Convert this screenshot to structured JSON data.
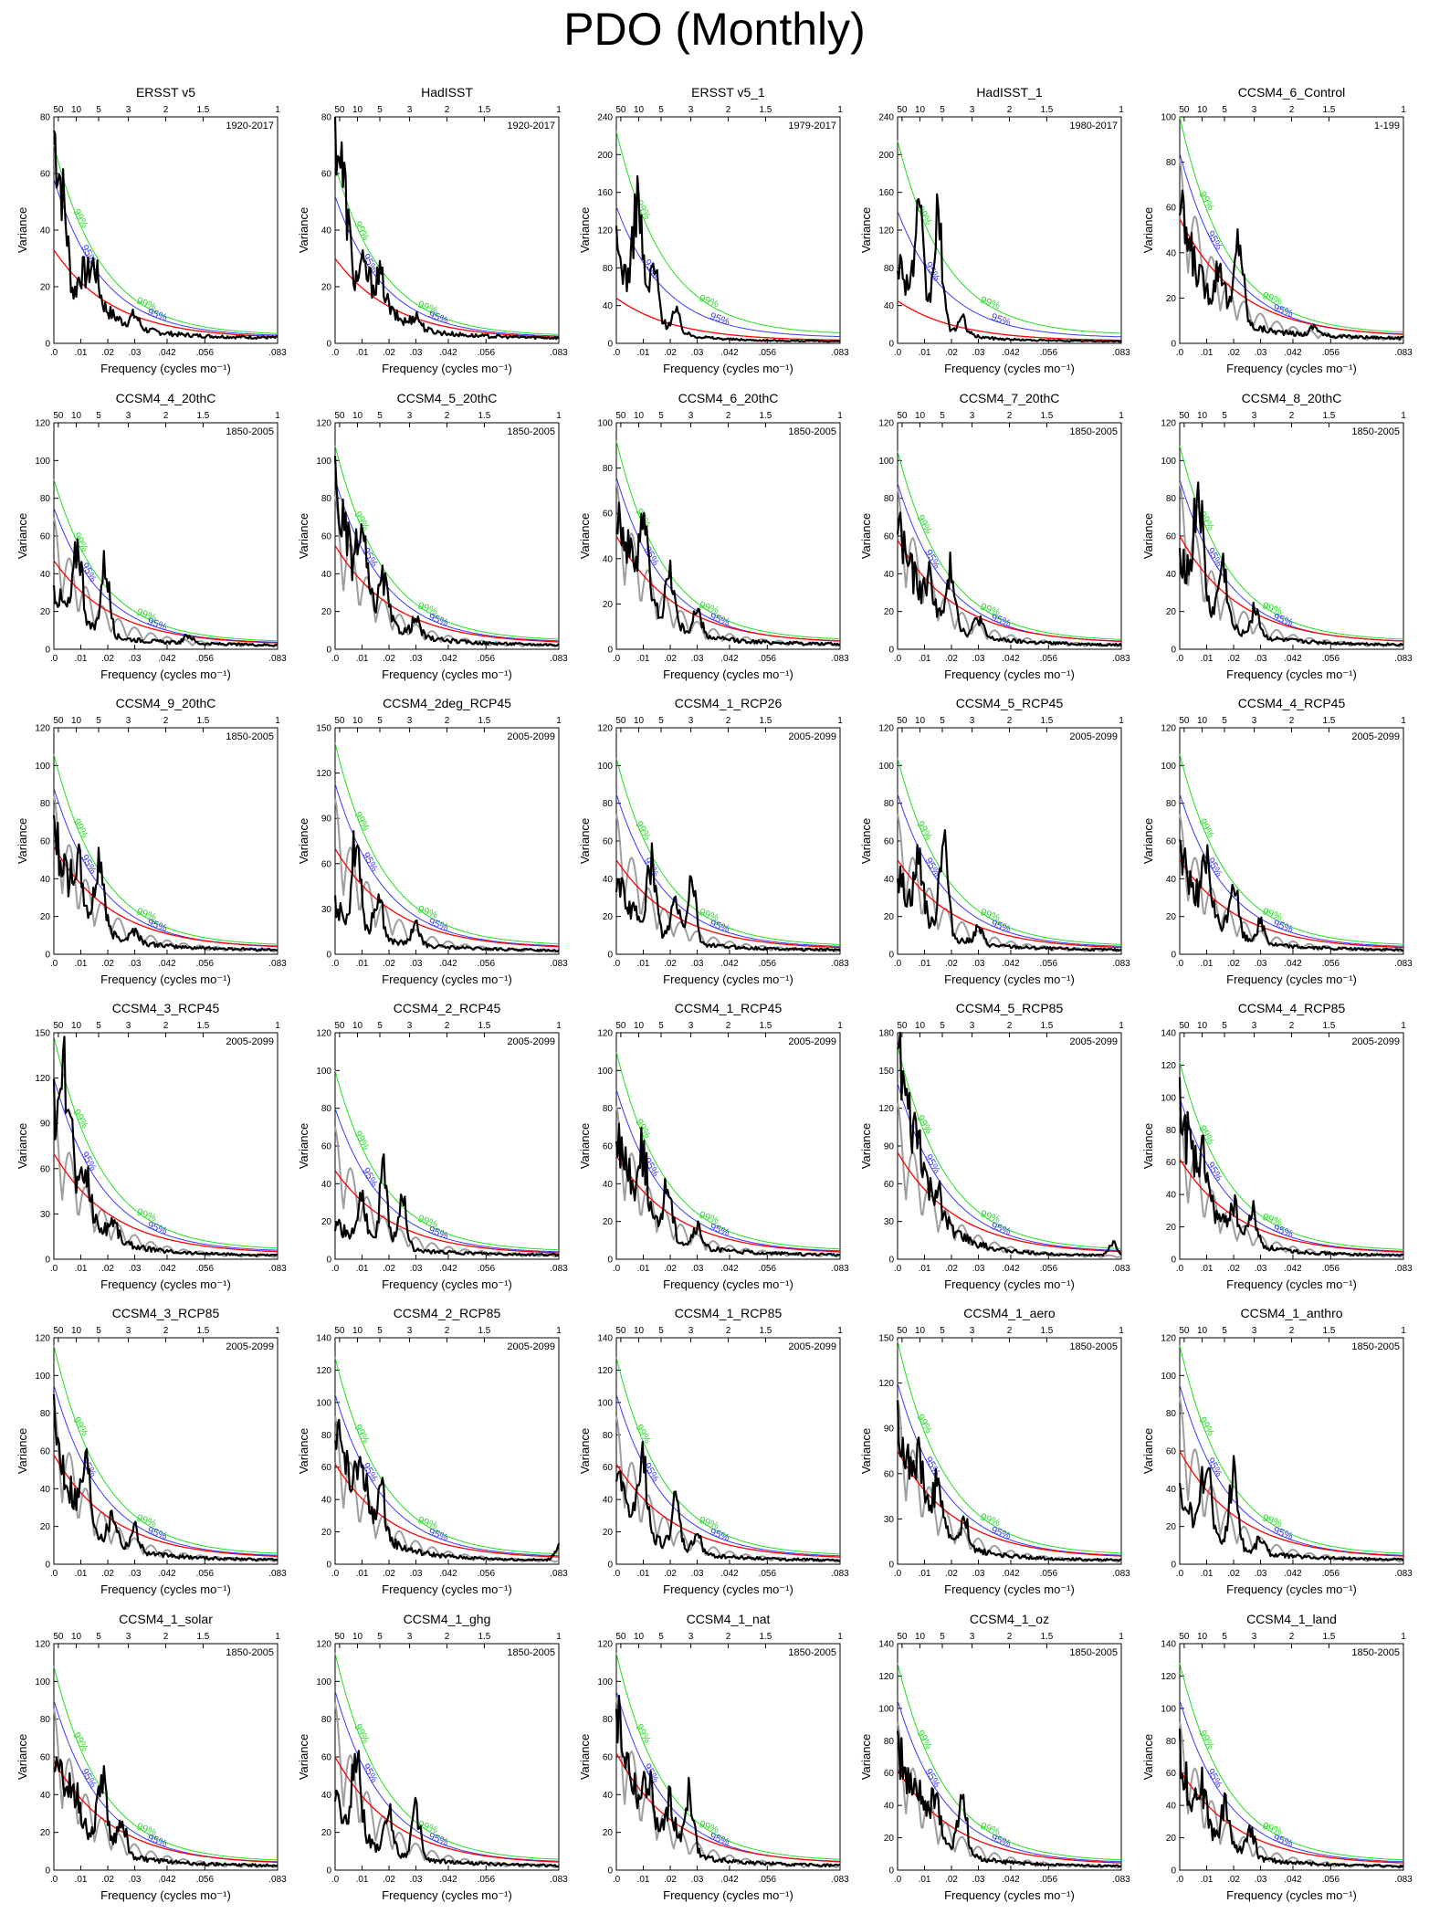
{
  "title": "PDO (Monthly)",
  "colors": {
    "spectrum": "#000000",
    "control_spectrum": "#9e9e9e",
    "red_noise": "#ff0000",
    "sig95": "#3a3aff",
    "sig99": "#22dd22"
  },
  "common": {
    "xlabel": "Frequency (cycles mo⁻¹)",
    "ylabel": "Variance",
    "x_ticks": [
      ".0",
      ".01",
      ".02",
      ".03",
      ".042",
      ".056",
      ".083"
    ],
    "top_ticks": [
      "50",
      "10",
      "5",
      "3",
      "2",
      "1.5",
      "1"
    ],
    "label_95": "95%",
    "label_99": "99%"
  },
  "chart_data": [
    {
      "type": "line",
      "title": "ERSST v5",
      "period": "1920-2017",
      "ylim": [
        0,
        80
      ],
      "yticks": [
        0,
        20,
        40,
        60,
        80
      ],
      "peak": 70,
      "red0": 33,
      "s95": 58,
      "s99": 70,
      "bumps": [
        [
          0.007,
          -18
        ],
        [
          0.015,
          10
        ],
        [
          0.03,
          4
        ]
      ],
      "gray": false
    },
    {
      "type": "line",
      "title": "HadISST",
      "period": "1920-2017",
      "ylim": [
        0,
        80
      ],
      "yticks": [
        0,
        20,
        40,
        60,
        80
      ],
      "peak": 75,
      "red0": 30,
      "s95": 52,
      "s99": 63,
      "bumps": [
        [
          0.007,
          -15
        ],
        [
          0.017,
          8
        ],
        [
          0.03,
          4
        ]
      ],
      "gray": false
    },
    {
      "type": "line",
      "title": "ERSST v5_1",
      "period": "1979-2017",
      "ylim": [
        0,
        240
      ],
      "yticks": [
        0,
        40,
        80,
        120,
        160,
        200,
        240
      ],
      "peak": 95,
      "red0": 48,
      "s95": 145,
      "s99": 225,
      "bumps": [
        [
          0.008,
          110
        ],
        [
          0.014,
          55
        ],
        [
          0.022,
          20
        ]
      ],
      "gray": false
    },
    {
      "type": "line",
      "title": "HadISST_1",
      "period": "1980-2017",
      "ylim": [
        0,
        240
      ],
      "yticks": [
        0,
        40,
        80,
        120,
        160,
        200,
        240
      ],
      "peak": 85,
      "red0": 45,
      "s95": 140,
      "s99": 215,
      "bumps": [
        [
          0.008,
          90
        ],
        [
          0.015,
          110
        ],
        [
          0.024,
          15
        ]
      ],
      "gray": false
    },
    {
      "type": "line",
      "title": "CCSM4_6_Control",
      "period": "1-199",
      "ylim": [
        0,
        100
      ],
      "yticks": [
        0,
        20,
        40,
        60,
        80,
        100
      ],
      "peak": 52,
      "red0": 55,
      "s95": 84,
      "s99": 100,
      "bumps": [
        [
          0.015,
          20
        ],
        [
          0.022,
          37
        ],
        [
          0.05,
          4
        ]
      ],
      "gray": true
    },
    {
      "type": "line",
      "title": "CCSM4_4_20thC",
      "period": "1850-2005",
      "ylim": [
        0,
        120
      ],
      "yticks": [
        0,
        20,
        40,
        60,
        80,
        100,
        120
      ],
      "peak": 25,
      "red0": 47,
      "s95": 75,
      "s99": 90,
      "bumps": [
        [
          0.009,
          40
        ],
        [
          0.019,
          37
        ],
        [
          0.05,
          4
        ]
      ],
      "gray": true
    },
    {
      "type": "line",
      "title": "CCSM4_5_20thC",
      "period": "1850-2005",
      "ylim": [
        0,
        120
      ],
      "yticks": [
        0,
        20,
        40,
        60,
        80,
        100,
        120
      ],
      "peak": 80,
      "red0": 55,
      "s95": 90,
      "s99": 108,
      "bumps": [
        [
          0.01,
          28
        ],
        [
          0.018,
          20
        ],
        [
          0.03,
          8
        ]
      ],
      "gray": true
    },
    {
      "type": "line",
      "title": "CCSM4_6_20thC",
      "period": "1850-2005",
      "ylim": [
        0,
        100
      ],
      "yticks": [
        0,
        20,
        40,
        60,
        80,
        100
      ],
      "peak": 60,
      "red0": 50,
      "s95": 76,
      "s99": 92,
      "bumps": [
        [
          0.01,
          35
        ],
        [
          0.02,
          22
        ],
        [
          0.03,
          10
        ]
      ],
      "gray": true
    },
    {
      "type": "line",
      "title": "CCSM4_7_20thC",
      "period": "1850-2005",
      "ylim": [
        0,
        120
      ],
      "yticks": [
        0,
        20,
        40,
        60,
        80,
        100,
        120
      ],
      "peak": 60,
      "red0": 58,
      "s95": 88,
      "s99": 105,
      "bumps": [
        [
          0.012,
          15
        ],
        [
          0.02,
          30
        ],
        [
          0.03,
          10
        ]
      ],
      "gray": true
    },
    {
      "type": "line",
      "title": "CCSM4_8_20thC",
      "period": "1850-2005",
      "ylim": [
        0,
        120
      ],
      "yticks": [
        0,
        20,
        40,
        60,
        80,
        100,
        120
      ],
      "peak": 45,
      "red0": 60,
      "s95": 90,
      "s99": 108,
      "bumps": [
        [
          0.007,
          55
        ],
        [
          0.016,
          30
        ],
        [
          0.028,
          15
        ]
      ],
      "gray": true
    },
    {
      "type": "line",
      "title": "CCSM4_9_20thC",
      "period": "1850-2005",
      "ylim": [
        0,
        120
      ],
      "yticks": [
        0,
        20,
        40,
        60,
        80,
        100,
        120
      ],
      "peak": 58,
      "red0": 57,
      "s95": 88,
      "s99": 106,
      "bumps": [
        [
          0.009,
          20
        ],
        [
          0.017,
          36
        ],
        [
          0.03,
          6
        ]
      ],
      "gray": true
    },
    {
      "type": "line",
      "title": "CCSM4_2deg_RCP45",
      "period": "2005-2099",
      "ylim": [
        0,
        150
      ],
      "yticks": [
        0,
        30,
        60,
        90,
        120,
        150
      ],
      "peak": 22,
      "red0": 70,
      "s95": 113,
      "s99": 140,
      "bumps": [
        [
          0.008,
          62
        ],
        [
          0.016,
          30
        ],
        [
          0.03,
          12
        ]
      ],
      "gray": true
    },
    {
      "type": "line",
      "title": "CCSM4_1_RCP26",
      "period": "2005-2099",
      "ylim": [
        0,
        120
      ],
      "yticks": [
        0,
        20,
        40,
        60,
        80,
        100,
        120
      ],
      "peak": 32,
      "red0": 50,
      "s95": 85,
      "s99": 104,
      "bumps": [
        [
          0.013,
          35
        ],
        [
          0.022,
          20
        ],
        [
          0.028,
          33
        ]
      ],
      "gray": true
    },
    {
      "type": "line",
      "title": "CCSM4_5_RCP45",
      "period": "2005-2099",
      "ylim": [
        0,
        120
      ],
      "yticks": [
        0,
        20,
        40,
        60,
        80,
        100,
        120
      ],
      "peak": 35,
      "red0": 50,
      "s95": 85,
      "s99": 104,
      "bumps": [
        [
          0.008,
          30
        ],
        [
          0.017,
          52
        ],
        [
          0.03,
          8
        ]
      ],
      "gray": true
    },
    {
      "type": "line",
      "title": "CCSM4_4_RCP45",
      "period": "2005-2099",
      "ylim": [
        0,
        120
      ],
      "yticks": [
        0,
        20,
        40,
        60,
        80,
        100,
        120
      ],
      "peak": 50,
      "red0": 50,
      "s95": 85,
      "s99": 106,
      "bumps": [
        [
          0.01,
          25
        ],
        [
          0.02,
          28
        ],
        [
          0.03,
          10
        ]
      ],
      "gray": true
    },
    {
      "type": "line",
      "title": "CCSM4_3_RCP45",
      "period": "2005-2099",
      "ylim": [
        0,
        150
      ],
      "yticks": [
        0,
        30,
        60,
        90,
        120,
        150
      ],
      "peak": 92,
      "red0": 70,
      "s95": 120,
      "s99": 148,
      "bumps": [
        [
          0.005,
          65
        ],
        [
          0.012,
          25
        ],
        [
          0.022,
          12
        ]
      ],
      "gray": true
    },
    {
      "type": "line",
      "title": "CCSM4_2_RCP45",
      "period": "2005-2099",
      "ylim": [
        0,
        120
      ],
      "yticks": [
        0,
        20,
        40,
        60,
        80,
        100,
        120
      ],
      "peak": 12,
      "red0": 47,
      "s95": 80,
      "s99": 100,
      "bumps": [
        [
          0.01,
          22
        ],
        [
          0.018,
          38
        ],
        [
          0.025,
          28
        ]
      ],
      "gray": true
    },
    {
      "type": "line",
      "title": "CCSM4_1_RCP45",
      "period": "2005-2099",
      "ylim": [
        0,
        120
      ],
      "yticks": [
        0,
        20,
        40,
        60,
        80,
        100,
        120
      ],
      "peak": 62,
      "red0": 55,
      "s95": 90,
      "s99": 110,
      "bumps": [
        [
          0.01,
          30
        ],
        [
          0.019,
          28
        ],
        [
          0.03,
          10
        ]
      ],
      "gray": true
    },
    {
      "type": "line",
      "title": "CCSM4_5_RCP85",
      "period": "2005-2099",
      "ylim": [
        0,
        180
      ],
      "yticks": [
        0,
        30,
        60,
        90,
        120,
        150,
        180
      ],
      "peak": 155,
      "red0": 85,
      "s95": 140,
      "s99": 170,
      "bumps": [
        [
          0.008,
          20
        ],
        [
          0.015,
          15
        ],
        [
          0.08,
          10
        ]
      ],
      "gray": true
    },
    {
      "type": "line",
      "title": "CCSM4_4_RCP85",
      "period": "2005-2099",
      "ylim": [
        0,
        140
      ],
      "yticks": [
        0,
        20,
        40,
        60,
        80,
        100,
        120,
        140
      ],
      "peak": 92,
      "red0": 62,
      "s95": 100,
      "s99": 122,
      "bumps": [
        [
          0.009,
          20
        ],
        [
          0.02,
          18
        ],
        [
          0.027,
          20
        ]
      ],
      "gray": true
    },
    {
      "type": "line",
      "title": "CCSM4_3_RCP85",
      "period": "2005-2099",
      "ylim": [
        0,
        120
      ],
      "yticks": [
        0,
        20,
        40,
        60,
        80,
        100,
        120
      ],
      "peak": 65,
      "red0": 58,
      "s95": 95,
      "s99": 116,
      "bumps": [
        [
          0.012,
          30
        ],
        [
          0.022,
          15
        ],
        [
          0.03,
          12
        ]
      ],
      "gray": true
    },
    {
      "type": "line",
      "title": "CCSM4_2_RCP85",
      "period": "2005-2099",
      "ylim": [
        0,
        140
      ],
      "yticks": [
        0,
        20,
        40,
        60,
        80,
        100,
        120,
        140
      ],
      "peak": 82,
      "red0": 62,
      "s95": 105,
      "s99": 128,
      "bumps": [
        [
          0.01,
          30
        ],
        [
          0.017,
          28
        ],
        [
          0.083,
          9
        ]
      ],
      "gray": true
    },
    {
      "type": "line",
      "title": "CCSM4_1_RCP85",
      "period": "2005-2099",
      "ylim": [
        0,
        140
      ],
      "yticks": [
        0,
        20,
        40,
        60,
        80,
        100,
        120,
        140
      ],
      "peak": 45,
      "red0": 62,
      "s95": 105,
      "s99": 128,
      "bumps": [
        [
          0.01,
          40
        ],
        [
          0.022,
          28
        ],
        [
          0.03,
          12
        ]
      ],
      "gray": true
    },
    {
      "type": "line",
      "title": "CCSM4_1_aero",
      "period": "1850-2005",
      "ylim": [
        0,
        150
      ],
      "yticks": [
        0,
        30,
        60,
        90,
        120,
        150
      ],
      "peak": 92,
      "red0": 75,
      "s95": 120,
      "s99": 148,
      "bumps": [
        [
          0.008,
          22
        ],
        [
          0.015,
          28
        ],
        [
          0.025,
          15
        ]
      ],
      "gray": true
    },
    {
      "type": "line",
      "title": "CCSM4_1_anthro",
      "period": "1850-2005",
      "ylim": [
        0,
        120
      ],
      "yticks": [
        0,
        20,
        40,
        60,
        80,
        100,
        120
      ],
      "peak": 28,
      "red0": 60,
      "s95": 95,
      "s99": 116,
      "bumps": [
        [
          0.01,
          43
        ],
        [
          0.02,
          40
        ],
        [
          0.03,
          8
        ]
      ],
      "gray": true
    },
    {
      "type": "line",
      "title": "CCSM4_1_solar",
      "period": "1850-2005",
      "ylim": [
        0,
        120
      ],
      "yticks": [
        0,
        20,
        40,
        60,
        80,
        100,
        120
      ],
      "peak": 58,
      "red0": 58,
      "s95": 90,
      "s99": 108,
      "bumps": [
        [
          0.008,
          12
        ],
        [
          0.018,
          37
        ],
        [
          0.025,
          20
        ]
      ],
      "gray": true
    },
    {
      "type": "line",
      "title": "CCSM4_1_ghg",
      "period": "1850-2005",
      "ylim": [
        0,
        120
      ],
      "yticks": [
        0,
        20,
        40,
        60,
        80,
        100,
        120
      ],
      "peak": 32,
      "red0": 60,
      "s95": 95,
      "s99": 115,
      "bumps": [
        [
          0.008,
          45
        ],
        [
          0.02,
          20
        ],
        [
          0.03,
          25
        ]
      ],
      "gray": true
    },
    {
      "type": "line",
      "title": "CCSM4_1_nat",
      "period": "1850-2005",
      "ylim": [
        0,
        120
      ],
      "yticks": [
        0,
        20,
        40,
        60,
        80,
        100,
        120
      ],
      "peak": 76,
      "red0": 62,
      "s95": 95,
      "s99": 115,
      "bumps": [
        [
          0.012,
          20
        ],
        [
          0.02,
          22
        ],
        [
          0.027,
          33
        ]
      ],
      "gray": true
    },
    {
      "type": "line",
      "title": "CCSM4_1_oz",
      "period": "1850-2005",
      "ylim": [
        0,
        140
      ],
      "yticks": [
        0,
        20,
        40,
        60,
        80,
        100,
        120,
        140
      ],
      "peak": 68,
      "red0": 62,
      "s95": 105,
      "s99": 128,
      "bumps": [
        [
          0.008,
          15
        ],
        [
          0.014,
          28
        ],
        [
          0.024,
          35
        ]
      ],
      "gray": true
    },
    {
      "type": "line",
      "title": "CCSM4_1_land",
      "period": "1850-2005",
      "ylim": [
        0,
        140
      ],
      "yticks": [
        0,
        20,
        40,
        60,
        80,
        100,
        120,
        140
      ],
      "peak": 62,
      "red0": 62,
      "s95": 105,
      "s99": 128,
      "bumps": [
        [
          0.008,
          20
        ],
        [
          0.017,
          25
        ],
        [
          0.026,
          18
        ]
      ],
      "gray": true
    }
  ]
}
